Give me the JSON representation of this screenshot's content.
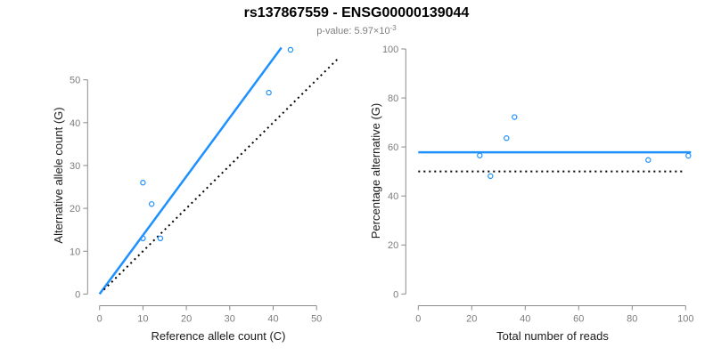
{
  "header": {
    "title": "rs137867559 - ENSG00000139044",
    "subtitle_prefix": "p-value: ",
    "subtitle_mantissa": "5.97",
    "subtitle_times": "×10",
    "subtitle_exponent": "-3"
  },
  "colors": {
    "accent_blue": "#1E90FF",
    "dotted_black": "#000000",
    "axis_gray": "#8a8a8a",
    "tick_label_gray": "#7d7d7d",
    "axis_title_black": "#1a1a1a",
    "subtitle_gray": "#7f7f7f"
  },
  "chart_data": [
    {
      "type": "scatter",
      "name": "allele-count-plot",
      "xlabel": "Reference allele count (C)",
      "ylabel": "Alternative allele count (G)",
      "xticks": [
        0,
        10,
        20,
        30,
        40,
        50
      ],
      "yticks": [
        0,
        10,
        20,
        30,
        40,
        50
      ],
      "xlim": [
        0,
        52
      ],
      "ylim": [
        0,
        58
      ],
      "grid": false,
      "point_color": "#1E90FF",
      "points": [
        {
          "x": 10,
          "y": 26
        },
        {
          "x": 12,
          "y": 21
        },
        {
          "x": 10,
          "y": 13
        },
        {
          "x": 14,
          "y": 13
        },
        {
          "x": 39,
          "y": 47
        },
        {
          "x": 44,
          "y": 57
        }
      ],
      "lines": [
        {
          "name": "fit-line",
          "style": "solid",
          "color": "#1E90FF",
          "width": 2.5,
          "x1": 0,
          "y1": 0,
          "x2": 41.9,
          "y2": 57.5
        },
        {
          "name": "identity-line",
          "style": "dotted",
          "color": "#000000",
          "width": 2,
          "x1": 1,
          "y1": 1,
          "x2": 55,
          "y2": 55
        }
      ]
    },
    {
      "type": "scatter",
      "name": "percentage-plot",
      "xlabel": "Total number of reads",
      "ylabel": "Percentage alternative (G)",
      "xticks": [
        0,
        20,
        40,
        60,
        80,
        100
      ],
      "yticks": [
        0,
        20,
        40,
        60,
        80,
        100
      ],
      "xlim": [
        0,
        102
      ],
      "ylim": [
        0,
        100
      ],
      "grid": false,
      "point_color": "#1E90FF",
      "points": [
        {
          "x": 36,
          "y": 72.2
        },
        {
          "x": 33,
          "y": 63.6
        },
        {
          "x": 23,
          "y": 56.5
        },
        {
          "x": 27,
          "y": 48.1
        },
        {
          "x": 86,
          "y": 54.7
        },
        {
          "x": 101,
          "y": 56.4
        }
      ],
      "lines": [
        {
          "name": "mean-percentage-line",
          "style": "solid",
          "color": "#1E90FF",
          "width": 2.5,
          "x1": 0,
          "y1": 57.8,
          "x2": 102,
          "y2": 57.8
        },
        {
          "name": "null-fifty-percent-line",
          "style": "dotted",
          "color": "#000000",
          "width": 2,
          "x1": 0,
          "y1": 50,
          "x2": 100,
          "y2": 50
        }
      ]
    }
  ]
}
